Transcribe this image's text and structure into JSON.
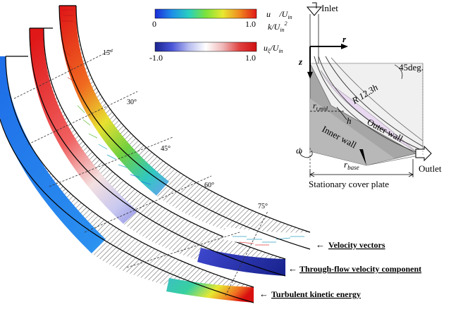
{
  "legend": {
    "top_bar": {
      "colors": [
        "#1a2bd8",
        "#1f8fe8",
        "#27d0c0",
        "#7be23a",
        "#e8e830",
        "#f08a20",
        "#e01818"
      ],
      "min_label": "0",
      "max_label": "1.0",
      "var_label_1": "u⃗ /U",
      "var_label_1_sub": "in",
      "var_label_2": "k/U",
      "var_label_2_sub": "in",
      "var_label_2_sup": "2"
    },
    "bottom_bar": {
      "colors": [
        "#1a2490",
        "#4a55d8",
        "#b8bdf0",
        "#ffffff",
        "#f0b8b8",
        "#e04040",
        "#d01010"
      ],
      "min_label": "-1.0",
      "max_label": "1.0",
      "var_label": "u",
      "var_label_sub": "ξ",
      "var_label_tail": "/U",
      "var_label_tail_sub": "in"
    }
  },
  "angles": [
    "15°",
    "30°",
    "45°",
    "60°",
    "75°"
  ],
  "callouts": [
    {
      "arrow": "←",
      "text": "Velocity vectors"
    },
    {
      "arrow": "←",
      "text": "Through-flow velocity component"
    },
    {
      "arrow": "←",
      "text": "Turbulent kinetic energy"
    }
  ],
  "schematic": {
    "inlet": "Inlet",
    "outlet": "Outlet",
    "r": "r",
    "z": "z",
    "angle": "45deg.",
    "radius": "R 12.3h",
    "h": "h",
    "r_mid": "r",
    "r_mid_sub": "t,mid",
    "outer_wall": "Outer wall",
    "inner_wall": "Inner wall",
    "omega": "ω",
    "r_base": "r",
    "r_base_sub": "base",
    "cover_plate": "Stationary cover plate"
  }
}
